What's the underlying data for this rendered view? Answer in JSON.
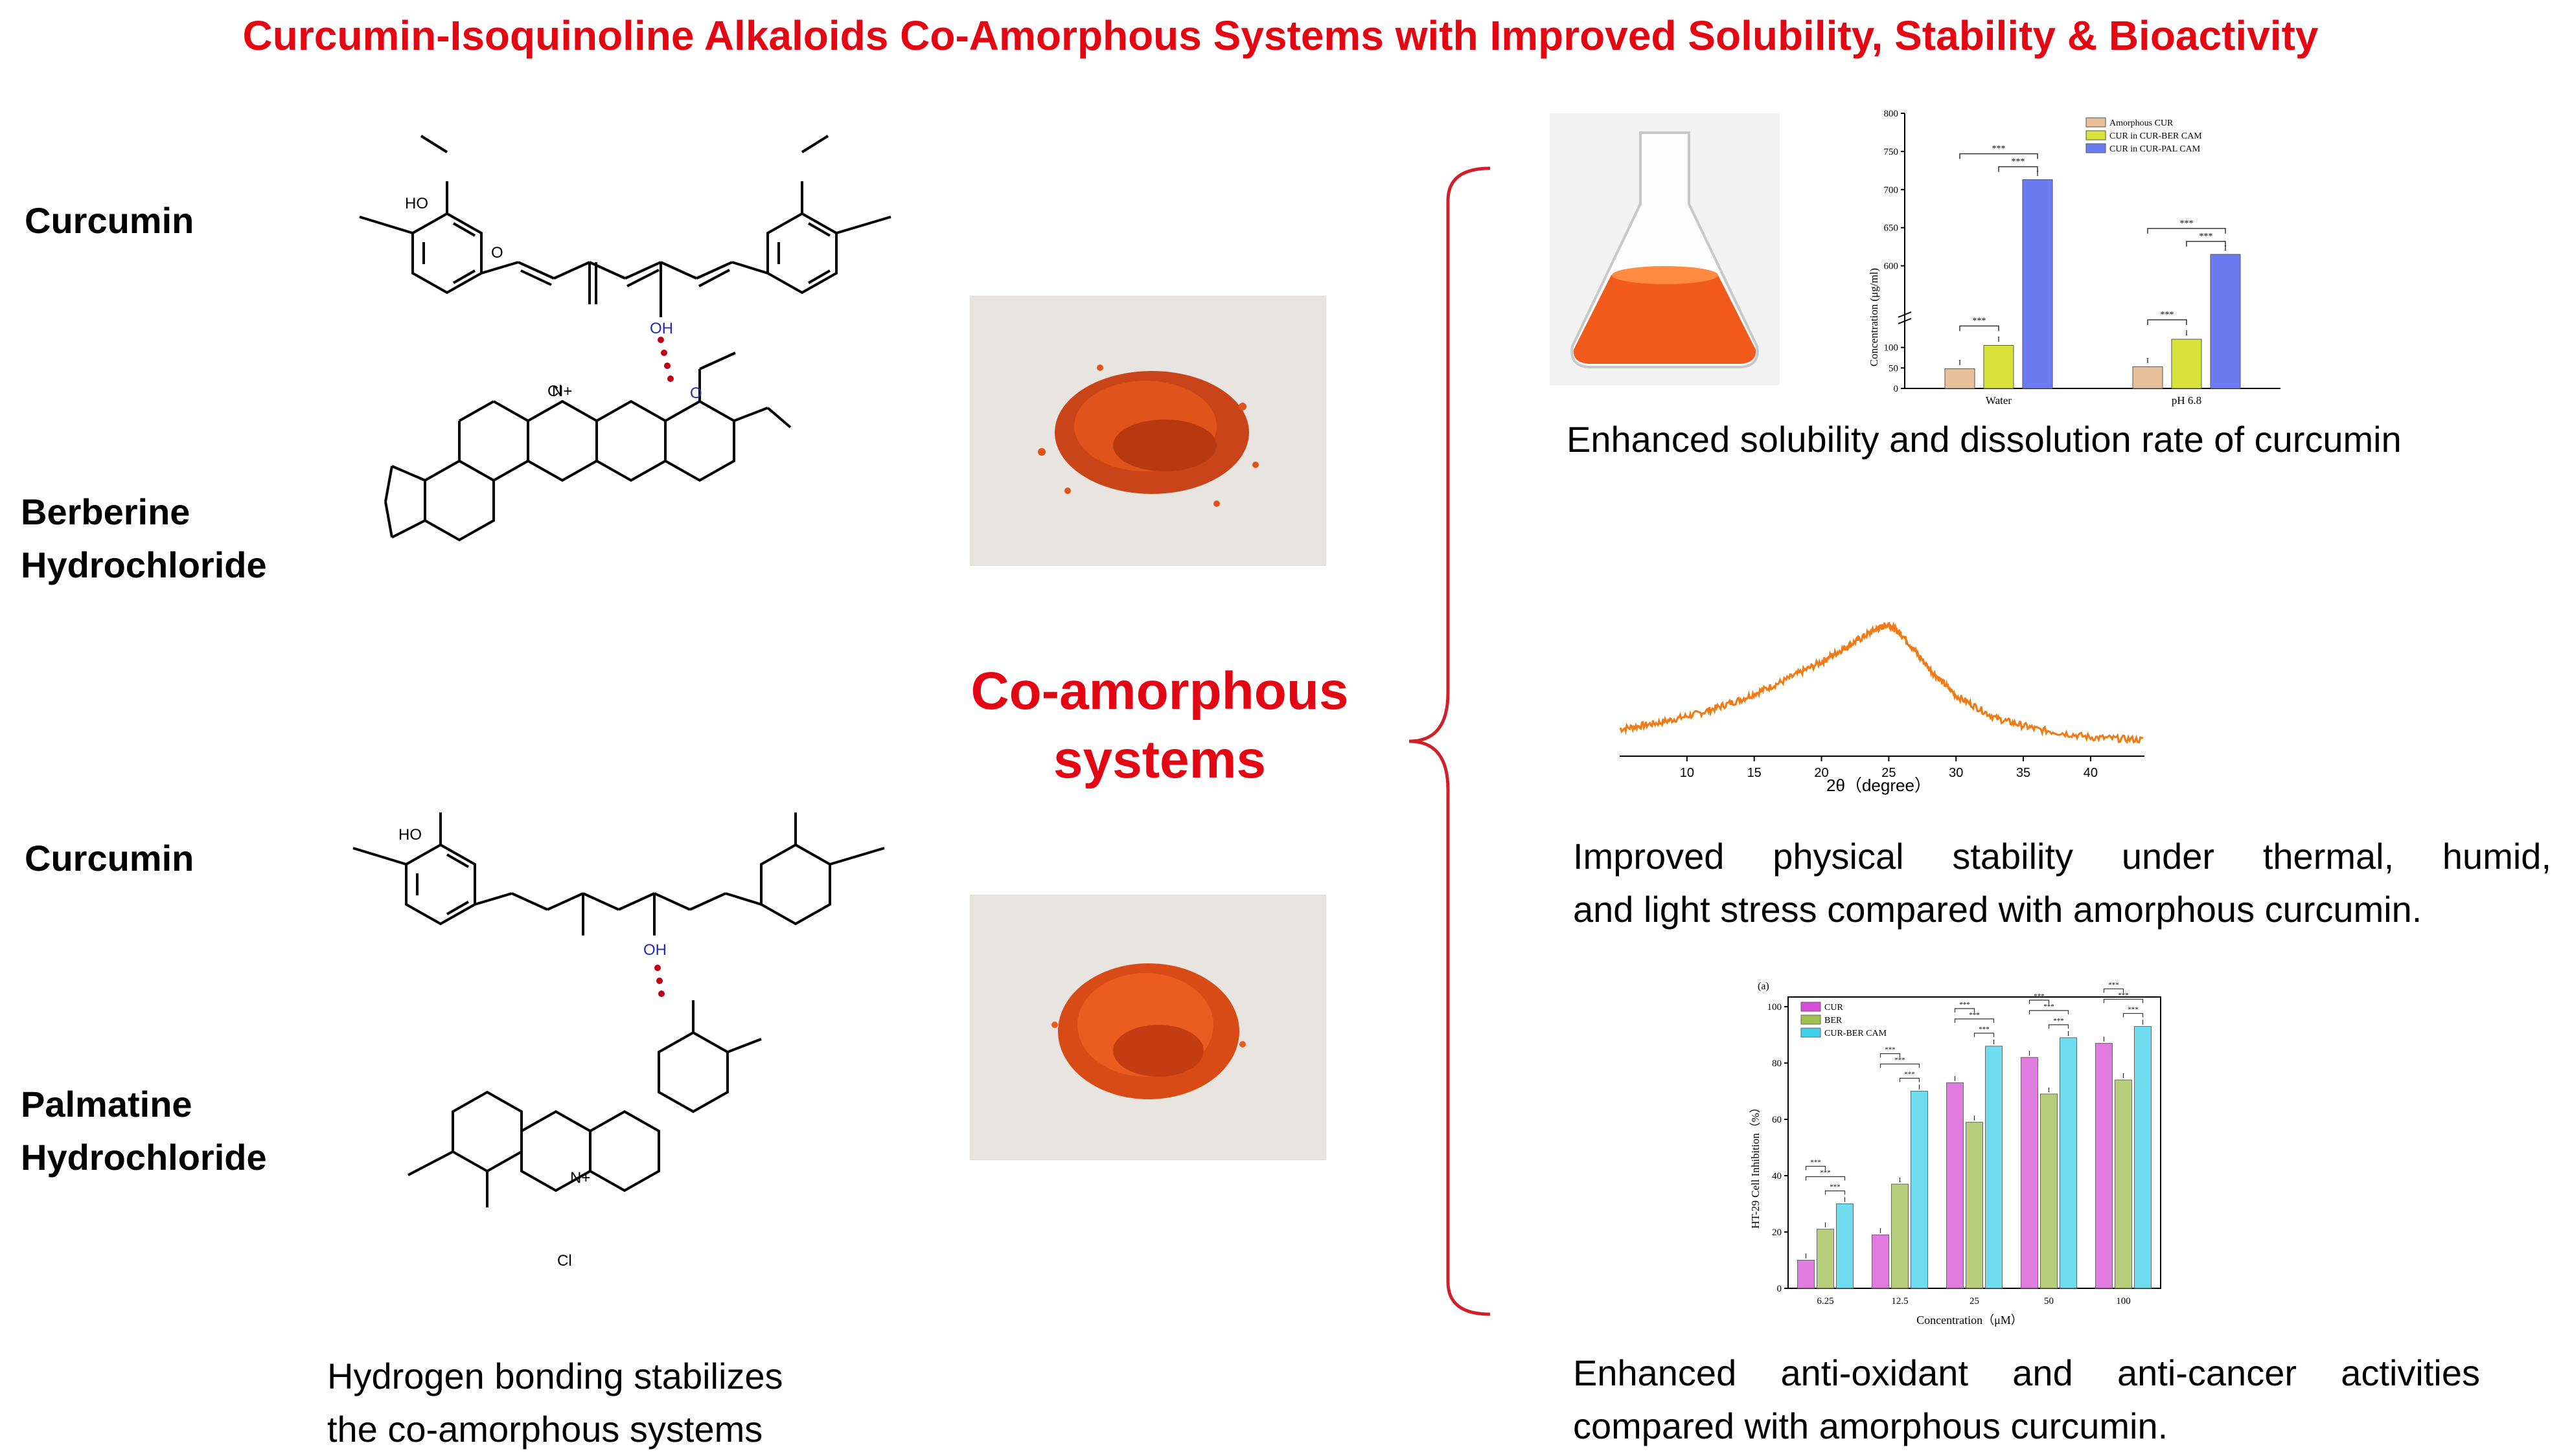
{
  "title": "Curcumin-Isoquinoline Alkaloids Co-Amorphous Systems with Improved Solubility, Stability & Bioactivity",
  "left": {
    "labels": {
      "curcumin_top": "Curcumin",
      "berberine_1": "Berberine",
      "berberine_2": "Hydrochloride",
      "curcumin_bottom": "Curcumin",
      "palmatine_1": "Palmatine",
      "palmatine_2": "Hydrochloride"
    },
    "atoms": {
      "ho": "HO",
      "oh": "OH",
      "o": "O",
      "cl": "Cl",
      "nplus": "N+",
      "minus": "−"
    },
    "caption_line1": "Hydrogen bonding stabilizes",
    "caption_line2": "the co-amorphous systems"
  },
  "center": {
    "label_line1": "Co-amorphous",
    "label_line2": "systems"
  },
  "right": {
    "solubility_caption": "Enhanced solubility and dissolution rate of curcumin",
    "stability_caption_line1": "Improved physical stability under thermal, humid,",
    "stability_caption_line2": "and light stress  compared with amorphous curcumin.",
    "bioactivity_caption_line1": "Enhanced anti-oxidant and anti-cancer activities",
    "bioactivity_caption_line2": "compared with amorphous curcumin."
  },
  "colors": {
    "title": "#e30613",
    "brace": "#d0202a",
    "hbond": "#c0001a",
    "hetero": "#1f2bb5",
    "xrd": "#f07a14",
    "powder": "#e0531a"
  },
  "chart_data": [
    {
      "type": "bar",
      "ylabel": "Concentration (μg/ml)",
      "categories": [
        "Water",
        "pH 6.8"
      ],
      "y_ticks": [
        "0",
        "50",
        "100",
        "600",
        "650",
        "700",
        "750",
        "800"
      ],
      "axis_break": true,
      "legend_position": "top-right",
      "series": [
        {
          "name": "Amorphous CUR",
          "values": [
            48,
            53
          ],
          "color": "#e8c09a"
        },
        {
          "name": "CUR in CUR-BER CAM",
          "values": [
            105,
            120
          ],
          "color": "#d7e23a"
        },
        {
          "name": "CUR in CUR-PAL CAM",
          "values": [
            713,
            615
          ],
          "color": "#6b7cf0"
        }
      ],
      "significance": "***"
    },
    {
      "type": "line",
      "xlabel": "2θ（degree）",
      "xlim": [
        5,
        44
      ],
      "x_ticks": [
        "10",
        "15",
        "20",
        "25",
        "30",
        "35",
        "40"
      ],
      "x": [
        5,
        8,
        11,
        14,
        17,
        20,
        22,
        24,
        25,
        26,
        28,
        30,
        33,
        36,
        40,
        44
      ],
      "y": [
        0.2,
        0.25,
        0.32,
        0.42,
        0.55,
        0.7,
        0.82,
        0.94,
        0.98,
        0.9,
        0.65,
        0.45,
        0.28,
        0.2,
        0.14,
        0.12
      ]
    },
    {
      "type": "bar",
      "panel_label": "(a)",
      "xlabel": "Concentration（μM）",
      "ylabel": "HT-29 Cell Inhibition（%）",
      "categories": [
        "6.25",
        "12.5",
        "25",
        "50",
        "100"
      ],
      "ylim": [
        0,
        100
      ],
      "y_ticks": [
        "0",
        "20",
        "40",
        "60",
        "80",
        "100"
      ],
      "legend_position": "top-left",
      "series": [
        {
          "name": "CUR",
          "values": [
            10,
            19,
            73,
            82,
            87
          ],
          "color": "#d64fd6"
        },
        {
          "name": "BER",
          "values": [
            21,
            37,
            59,
            69,
            74
          ],
          "color": "#9fbf52"
        },
        {
          "name": "CUR-BER CAM",
          "values": [
            30,
            70,
            86,
            89,
            93
          ],
          "color": "#3fd0ea"
        }
      ],
      "significance": "***"
    }
  ]
}
